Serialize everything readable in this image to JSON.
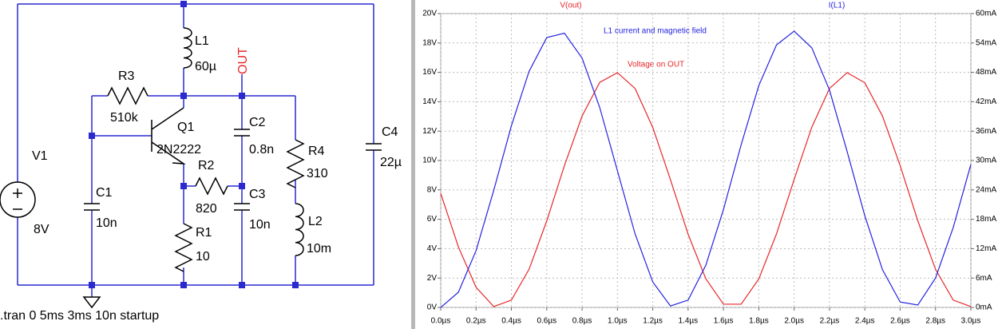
{
  "schematic": {
    "labels": [
      "L1",
      "60µ",
      "OUT",
      "R3",
      "510k",
      "Q1",
      "2N2222",
      "C2",
      "0.8n",
      "R4",
      "310",
      "C4",
      "22µ",
      "V1",
      "8V",
      "C1",
      "10n",
      "R2",
      "820",
      "C3",
      "10n",
      "L2",
      "10m",
      "R1",
      "10"
    ],
    "directive": ".tran 0 5ms 3ms 10n startup"
  },
  "chart_data": {
    "type": "line",
    "annotations": [
      "L1 current and magnetic field",
      "Voltage on OUT"
    ],
    "x": [
      0,
      0.1,
      0.2,
      0.3,
      0.4,
      0.5,
      0.6,
      0.7,
      0.8,
      0.9,
      1.0,
      1.1,
      1.2,
      1.3,
      1.4,
      1.5,
      1.6,
      1.7,
      1.8,
      1.9,
      2.0,
      2.1,
      2.2,
      2.3,
      2.4,
      2.5,
      2.6,
      2.7,
      2.8,
      2.9,
      3.0
    ],
    "series": [
      {
        "name": "V(out)",
        "color": "#e8262a",
        "values": [
          7.76,
          4.12,
          1.37,
          0.06,
          0.5,
          2.6,
          5.89,
          9.65,
          13.03,
          15.32,
          15.98,
          14.9,
          12.25,
          8.7,
          4.98,
          1.96,
          0.22,
          0.22,
          1.94,
          5.0,
          8.71,
          12.27,
          14.9,
          15.98,
          15.29,
          13.02,
          9.65,
          5.89,
          2.6,
          0.5,
          0.06
        ]
      },
      {
        "name": "I(L1)",
        "color": "#2323e0",
        "axis": "y2",
        "values": [
          0,
          3.1,
          11.6,
          23.9,
          37.1,
          48.2,
          55.1,
          56.0,
          50.9,
          40.8,
          27.9,
          15.0,
          5.2,
          0.3,
          1.5,
          8.6,
          20.0,
          33.2,
          45.3,
          53.6,
          56.4,
          53.0,
          44.4,
          31.8,
          18.7,
          7.7,
          1.1,
          0.5,
          6.0,
          16.3,
          29.2
        ]
      }
    ],
    "xlim": [
      0,
      3.0
    ],
    "xticks": [
      {
        "value": 0,
        "label": "0.0µs"
      },
      {
        "value": 0.2,
        "label": "0.2µs"
      },
      {
        "value": 0.4,
        "label": "0.4µs"
      },
      {
        "value": 0.6,
        "label": "0.6µs"
      },
      {
        "value": 0.8,
        "label": "0.8µs"
      },
      {
        "value": 1.0,
        "label": "1.0µs"
      },
      {
        "value": 1.2,
        "label": "1.2µs"
      },
      {
        "value": 1.4,
        "label": "1.4µs"
      },
      {
        "value": 1.6,
        "label": "1.6µs"
      },
      {
        "value": 1.8,
        "label": "1.8µs"
      },
      {
        "value": 2.0,
        "label": "2.0µs"
      },
      {
        "value": 2.2,
        "label": "2.2µs"
      },
      {
        "value": 2.4,
        "label": "2.4µs"
      },
      {
        "value": 2.6,
        "label": "2.6µs"
      },
      {
        "value": 2.8,
        "label": "2.8µs"
      },
      {
        "value": 3.0,
        "label": "3.0µs"
      }
    ],
    "ylim": [
      0,
      20
    ],
    "yticks": [
      {
        "value": 0,
        "label": "0V"
      },
      {
        "value": 2,
        "label": "2V"
      },
      {
        "value": 4,
        "label": "4V"
      },
      {
        "value": 6,
        "label": "6V"
      },
      {
        "value": 8,
        "label": "8V"
      },
      {
        "value": 10,
        "label": "10V"
      },
      {
        "value": 12,
        "label": "12V"
      },
      {
        "value": 14,
        "label": "14V"
      },
      {
        "value": 16,
        "label": "16V"
      },
      {
        "value": 18,
        "label": "18V"
      },
      {
        "value": 20,
        "label": "20V"
      }
    ],
    "y2lim": [
      0,
      60
    ],
    "y2ticks": [
      {
        "value": 0,
        "label": "0mA"
      },
      {
        "value": 6,
        "label": "6mA"
      },
      {
        "value": 12,
        "label": "12mA"
      },
      {
        "value": 18,
        "label": "18mA"
      },
      {
        "value": 24,
        "label": "24mA"
      },
      {
        "value": 30,
        "label": "30mA"
      },
      {
        "value": 36,
        "label": "36mA"
      },
      {
        "value": 42,
        "label": "42mA"
      },
      {
        "value": 48,
        "label": "48mA"
      },
      {
        "value": 54,
        "label": "54mA"
      },
      {
        "value": 60,
        "label": "60mA"
      }
    ],
    "grid": true
  }
}
